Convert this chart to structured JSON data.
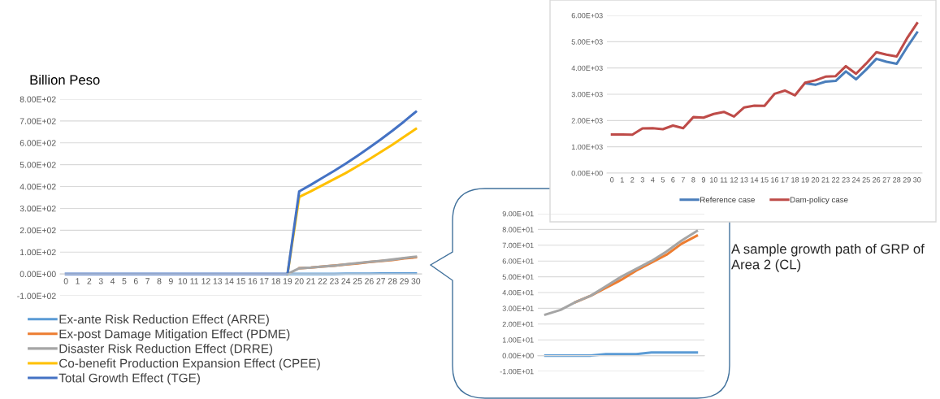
{
  "chart_data": [
    {
      "type": "line",
      "ylabel": "Billion Peso",
      "categories": [
        "0",
        "1",
        "2",
        "3",
        "4",
        "5",
        "6",
        "7",
        "8",
        "9",
        "10",
        "11",
        "12",
        "13",
        "14",
        "15",
        "16",
        "17",
        "18",
        "19",
        "20",
        "21",
        "22",
        "23",
        "24",
        "25",
        "26",
        "27",
        "28",
        "29",
        "30"
      ],
      "series": [
        {
          "name": "Ex-ante Risk Reduction Effect (ARRE)",
          "color": "#5b9bd5",
          "values": [
            null,
            null,
            null,
            null,
            null,
            null,
            null,
            null,
            null,
            null,
            null,
            null,
            null,
            null,
            null,
            null,
            null,
            null,
            null,
            0,
            0,
            0,
            0,
            0,
            1,
            1,
            1,
            2,
            2,
            2,
            2
          ]
        },
        {
          "name": "Ex-post Damage Mitigation Effect (PDME)",
          "color": "#ed7d31",
          "values": [
            null,
            null,
            null,
            null,
            null,
            null,
            null,
            null,
            null,
            null,
            null,
            null,
            null,
            null,
            null,
            null,
            null,
            null,
            null,
            null,
            26,
            29,
            34,
            38,
            43,
            48,
            54,
            59,
            64,
            71,
            76
          ]
        },
        {
          "name": "Disaster Risk Reduction Effect (DRRE)",
          "color": "#a5a5a5",
          "values": [
            null,
            null,
            null,
            null,
            null,
            null,
            null,
            null,
            null,
            null,
            null,
            null,
            null,
            null,
            null,
            null,
            null,
            null,
            null,
            0,
            26,
            29,
            34,
            38,
            44,
            50,
            55,
            60,
            66,
            73,
            79
          ]
        },
        {
          "name": "Co-benefit Production Expansion Effect (CPEE)",
          "color": "#ffc000",
          "values": [
            null,
            null,
            null,
            null,
            null,
            null,
            null,
            null,
            null,
            null,
            null,
            null,
            null,
            null,
            null,
            null,
            null,
            null,
            null,
            0,
            352,
            378,
            406,
            434,
            462,
            493,
            525,
            558,
            592,
            628,
            664
          ]
        },
        {
          "name": "Total Growth Effect (TGE)",
          "color": "#4472c4",
          "values": [
            0,
            0,
            0,
            0,
            0,
            0,
            0,
            0,
            0,
            0,
            0,
            0,
            0,
            0,
            0,
            0,
            0,
            0,
            0,
            0,
            378,
            408,
            440,
            472,
            505,
            541,
            578,
            616,
            656,
            698,
            742
          ]
        }
      ],
      "ylim": [
        -100,
        800
      ],
      "yticks": [
        {
          "value": -100,
          "label": "-1.00E+02"
        },
        {
          "value": 0,
          "label": "0.00E+00"
        },
        {
          "value": 100,
          "label": "1.00E+02"
        },
        {
          "value": 200,
          "label": "2.00E+02"
        },
        {
          "value": 300,
          "label": "3.00E+02"
        },
        {
          "value": 400,
          "label": "4.00E+02"
        },
        {
          "value": 500,
          "label": "5.00E+02"
        },
        {
          "value": 600,
          "label": "6.00E+02"
        },
        {
          "value": 700,
          "label": "7.00E+02"
        },
        {
          "value": 800,
          "label": "8.00E+02"
        }
      ],
      "grid": "y",
      "legend": "bottom",
      "marker": "none",
      "line_style": "solid"
    },
    {
      "type": "line",
      "categories": [
        null,
        null,
        null,
        null,
        null,
        null,
        null,
        null,
        null,
        null,
        null
      ],
      "series": [
        {
          "color": "#5b9bd5",
          "values": [
            0,
            0,
            0,
            0,
            1,
            1,
            1,
            2,
            2,
            2,
            2
          ]
        },
        {
          "color": "#ed7d31",
          "values": [
            null,
            null,
            34,
            38,
            43,
            48,
            54,
            59,
            64,
            71,
            76
          ]
        },
        {
          "color": "#a5a5a5",
          "values": [
            26,
            29,
            34,
            38,
            44,
            50,
            55,
            60,
            66,
            73,
            79
          ]
        }
      ],
      "ylim": [
        -10,
        90
      ],
      "yticks": [
        {
          "value": -10,
          "label": "-1.00E+01"
        },
        {
          "value": 0,
          "label": "0.00E+00"
        },
        {
          "value": 10,
          "label": "1.00E+01"
        },
        {
          "value": 20,
          "label": "2.00E+01"
        },
        {
          "value": 30,
          "label": "3.00E+01"
        },
        {
          "value": 40,
          "label": "4.00E+01"
        },
        {
          "value": 50,
          "label": "5.00E+01"
        },
        {
          "value": 60,
          "label": "6.00E+01"
        },
        {
          "value": 70,
          "label": "7.00E+01"
        },
        {
          "value": 80,
          "label": "8.00E+01"
        },
        {
          "value": 90,
          "label": "9.00E+01"
        }
      ],
      "grid": "y",
      "marker": "none",
      "line_style": "solid"
    },
    {
      "type": "line",
      "categories": [
        "0",
        "1",
        "2",
        "3",
        "4",
        "5",
        "6",
        "7",
        "8",
        "9",
        "10",
        "11",
        "12",
        "13",
        "14",
        "15",
        "16",
        "17",
        "18",
        "19",
        "20",
        "21",
        "22",
        "23",
        "24",
        "25",
        "26",
        "27",
        "28",
        "29",
        "30"
      ],
      "series": [
        {
          "name": "Reference case",
          "color": "#4a7ebb",
          "values": [
            null,
            null,
            null,
            null,
            null,
            null,
            null,
            null,
            null,
            null,
            null,
            null,
            null,
            null,
            null,
            null,
            null,
            null,
            null,
            3420,
            3360,
            3480,
            3510,
            3870,
            3570,
            3940,
            4350,
            4240,
            4160,
            4780,
            5350
          ]
        },
        {
          "name": "Dam-policy case",
          "color": "#be4b48",
          "values": [
            1470,
            1470,
            1460,
            1700,
            1710,
            1670,
            1810,
            1710,
            2130,
            2110,
            2250,
            2330,
            2150,
            2500,
            2570,
            2560,
            3020,
            3140,
            2960,
            3440,
            3530,
            3670,
            3690,
            4070,
            3780,
            4170,
            4600,
            4510,
            4440,
            5120,
            5700
          ]
        }
      ],
      "ylim": [
        0,
        6000
      ],
      "yticks": [
        {
          "value": 0,
          "label": "0.00E+00"
        },
        {
          "value": 1000,
          "label": "1.00E+03"
        },
        {
          "value": 2000,
          "label": "2.00E+03"
        },
        {
          "value": 3000,
          "label": "3.00E+03"
        },
        {
          "value": 4000,
          "label": "4.00E+03"
        },
        {
          "value": 5000,
          "label": "5.00E+03"
        },
        {
          "value": 6000,
          "label": "6.00E+03"
        }
      ],
      "grid": "y",
      "legend": "bottom",
      "marker": "none",
      "line_style": "solid",
      "annotations": [
        "A sample growth path of GRP of Area 2 (CL)"
      ]
    }
  ]
}
